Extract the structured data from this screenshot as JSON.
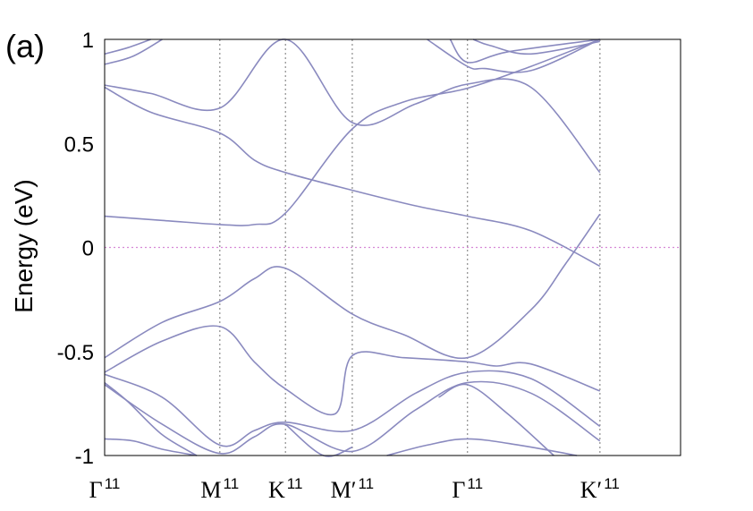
{
  "panel_label": "(a)",
  "chart_data": {
    "type": "line",
    "title": "",
    "ylabel": "Energy (eV)",
    "xlabel": "",
    "ylim": [
      -1,
      1
    ],
    "yticks": [
      {
        "value": 1,
        "label": "1"
      },
      {
        "value": 0.5,
        "label": "0.5"
      },
      {
        "value": 0,
        "label": "0"
      },
      {
        "value": -0.5,
        "label": "-0.5"
      },
      {
        "value": -1,
        "label": "-1"
      }
    ],
    "xlim": [
      0,
      5
    ],
    "k_points": [
      {
        "x": 0,
        "label": "Γ",
        "sup": "11"
      },
      {
        "x": 1,
        "label": "M",
        "sup": "11"
      },
      {
        "x": 1.57,
        "label": "K",
        "sup": "11"
      },
      {
        "x": 2.15,
        "label": "M′",
        "sup": "11"
      },
      {
        "x": 3.15,
        "label": "Γ",
        "sup": "11"
      },
      {
        "x": 4.3,
        "label": "K′",
        "sup": "11"
      }
    ],
    "fermi_level": 0,
    "band_color": "#8a8abf",
    "fermi_color": "#d68ad6",
    "series": [
      {
        "x": [
          0,
          0.5,
          1,
          1.3,
          1.57,
          2.15,
          2.6,
          3.15,
          3.7,
          4.3
        ],
        "y": [
          0.15,
          0.13,
          0.11,
          0.11,
          0.165,
          0.57,
          0.7,
          0.765,
          0.87,
          1.0
        ]
      },
      {
        "x": [
          0,
          0.4,
          1,
          1.57,
          2.15,
          2.7,
          3.15,
          3.7,
          4.3
        ],
        "y": [
          0.78,
          0.74,
          0.67,
          1.0,
          0.6,
          0.69,
          0.785,
          0.77,
          0.36
        ]
      },
      {
        "x": [
          0,
          0.4,
          1,
          1.3,
          1.57,
          2.15,
          2.7,
          3.15,
          3.7,
          4.3
        ],
        "y": [
          0.77,
          0.65,
          0.55,
          0.42,
          0.36,
          0.275,
          0.2,
          0.15,
          0.08,
          -0.09
        ]
      },
      {
        "x": [
          0,
          0.5,
          1,
          1.3,
          1.57,
          2.15,
          2.6,
          3.15,
          3.7,
          4.0,
          4.3
        ],
        "y": [
          -0.53,
          -0.36,
          -0.26,
          -0.15,
          -0.1,
          -0.32,
          -0.42,
          -0.53,
          -0.3,
          -0.08,
          0.16
        ]
      },
      {
        "x": [
          0,
          0.5,
          1,
          1.3,
          1.57,
          2.0,
          2.15,
          2.6,
          3.15,
          3.4,
          3.7,
          4.3
        ],
        "y": [
          -0.6,
          -0.45,
          -0.38,
          -0.55,
          -0.68,
          -0.8,
          -0.52,
          -0.53,
          -0.55,
          -0.57,
          -0.56,
          -0.69
        ]
      },
      {
        "x": [
          0,
          0.5,
          1,
          1.3,
          1.57,
          2.15,
          2.7,
          3.15,
          3.7,
          4.3
        ],
        "y": [
          -0.61,
          -0.72,
          -0.95,
          -0.88,
          -0.84,
          -0.88,
          -0.7,
          -0.6,
          -0.63,
          -0.86
        ]
      },
      {
        "x": [
          0,
          0.5,
          1,
          1.3,
          1.57,
          2.15,
          2.7,
          3.15,
          3.7,
          4.3
        ],
        "y": [
          -0.66,
          -0.85,
          -0.99,
          -0.91,
          -0.85,
          -0.98,
          -0.78,
          -0.65,
          -0.7,
          -0.93
        ]
      },
      {
        "x": [
          0,
          0.2,
          0.5,
          0.8
        ],
        "y": [
          -0.65,
          -0.74,
          -0.9,
          -1.0
        ]
      },
      {
        "x": [
          0,
          0.25,
          0.5,
          0.8
        ],
        "y": [
          -0.92,
          -0.93,
          -0.97,
          -1.0
        ]
      },
      {
        "x": [
          1.57,
          1.9,
          2.15
        ],
        "y": [
          -0.85,
          -1.0,
          -0.96
        ]
      },
      {
        "x": [
          2.45,
          2.8,
          3.15,
          3.6,
          4.1
        ],
        "y": [
          -1.0,
          -0.95,
          -0.92,
          -0.95,
          -1.0
        ]
      },
      {
        "x": [
          2.9,
          3.15,
          3.5,
          3.9
        ],
        "y": [
          -0.72,
          -0.66,
          -0.8,
          -1.0
        ]
      },
      {
        "x": [
          0,
          0.2,
          0.4
        ],
        "y": [
          0.93,
          0.96,
          1.0
        ]
      },
      {
        "x": [
          0,
          0.25,
          0.5
        ],
        "y": [
          0.88,
          0.92,
          1.0
        ]
      },
      {
        "x": [
          3.0,
          3.15,
          3.5,
          4.3
        ],
        "y": [
          1.0,
          0.89,
          0.94,
          1.0
        ]
      },
      {
        "x": [
          2.8,
          3.15,
          3.3,
          3.7,
          4.3
        ],
        "y": [
          1.0,
          0.87,
          0.86,
          0.85,
          1.0
        ]
      },
      {
        "x": [
          3.2,
          3.35,
          3.7,
          4.3
        ],
        "y": [
          1.0,
          0.97,
          0.93,
          0.99
        ]
      }
    ]
  }
}
